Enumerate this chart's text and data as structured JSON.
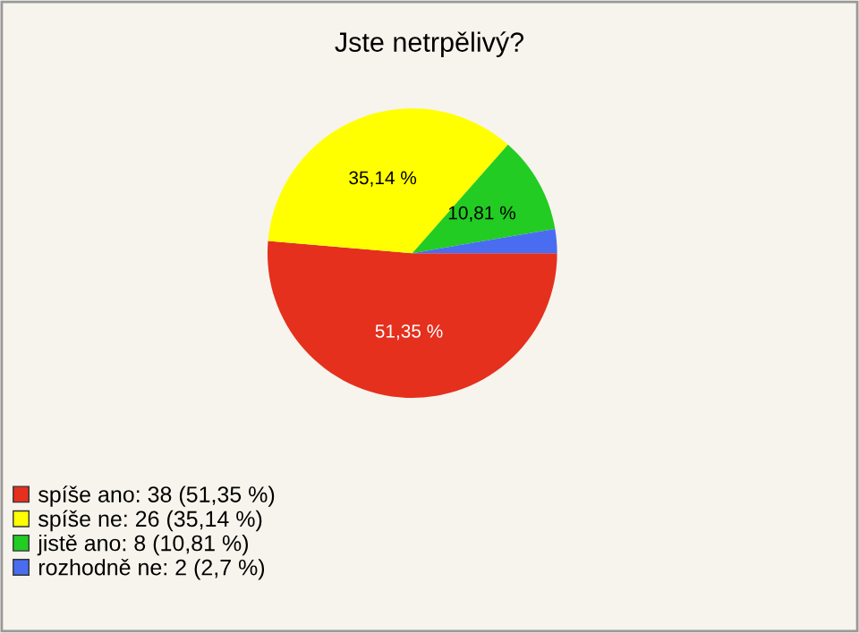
{
  "chart_data": {
    "type": "pie",
    "title": "Jste netrpělivý?",
    "categories": [
      "spíše ano: 38 (51,35 %)",
      "spíše ne: 26 (35,14 %)",
      "jistě ano: 8 (10,81 %)",
      "rozhodně ne: 2 (2,7 %)"
    ],
    "values": [
      51.35,
      35.14,
      10.81,
      2.7
    ],
    "colors": [
      "#e5301e",
      "#ffff00",
      "#22cc22",
      "#4a6cf0"
    ],
    "value_labels": [
      "51,35 %",
      "35,14 %",
      "10,81 %",
      null
    ],
    "legend": "bottom left"
  }
}
